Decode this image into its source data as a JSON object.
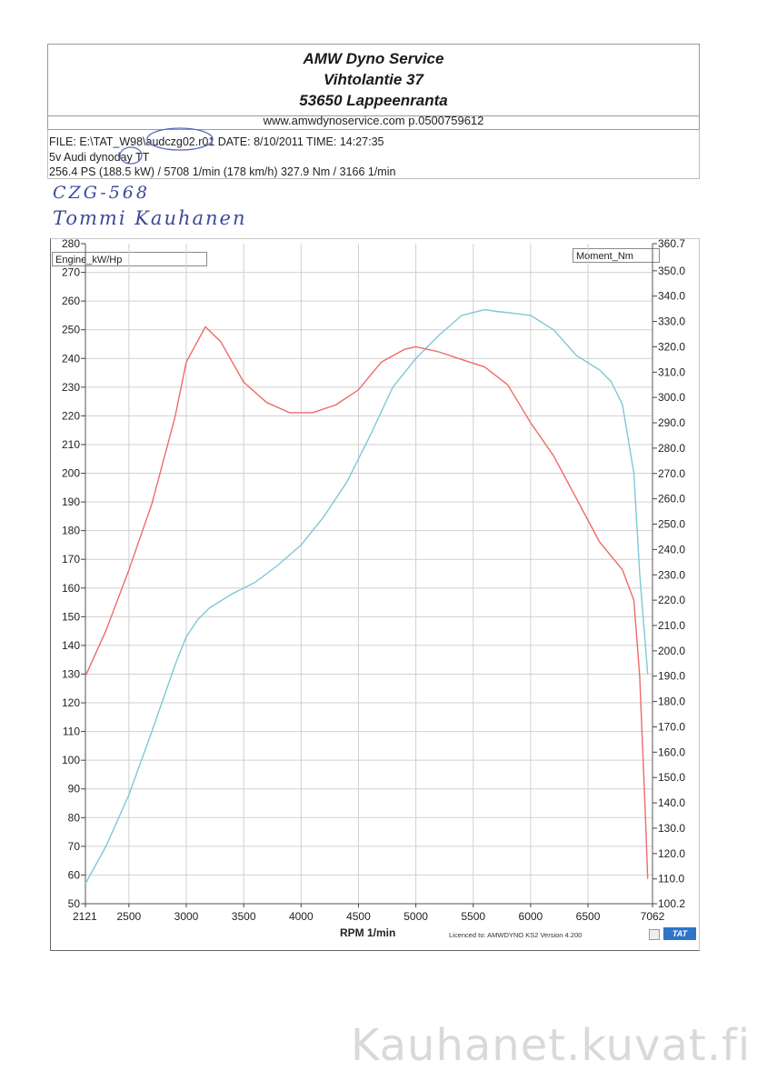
{
  "header": {
    "company": "AMW Dyno Service",
    "street": "Vihtolantie 37",
    "city": "53650 Lappeenranta",
    "web": "www.amwdynoservice.com p.0500759612"
  },
  "info": {
    "file_line": "FILE: E:\\TAT_W98\\audczg02.r01  DATE: 8/10/2011  TIME: 14:27:35",
    "car_line": "5v Audi dynoday  TT",
    "result_line": "256.4 PS  (188.5 kW) / 5708 1/min (178 km/h)    327.9 Nm / 3166 1/min"
  },
  "handwriting": {
    "plate": "CZG-568",
    "owner": "Tommi Kauhanen"
  },
  "colors": {
    "power": "#7ec8d8",
    "torque": "#f06a6a",
    "grid": "#d0d0d0",
    "tat": "#2f74c8"
  },
  "footer": {
    "licence": "Licenced to: AMWDYNO KS2    Version 4.200",
    "tat": "TAT"
  },
  "watermark": "Kauhanet.kuvat.fi",
  "chart_data": {
    "type": "line",
    "xlabel": "RPM  1/min",
    "x_range": [
      2121,
      7062
    ],
    "x_ticks": [
      "2121",
      "2500",
      "3000",
      "3500",
      "4000",
      "4500",
      "5000",
      "5500",
      "6000",
      "6500",
      "7062"
    ],
    "left_axis": {
      "label": "Engine_kW/Hp",
      "range": [
        50,
        280
      ],
      "ticks": [
        "280",
        "270",
        "260",
        "250",
        "240",
        "230",
        "220",
        "210",
        "200",
        "190",
        "180",
        "170",
        "160",
        "150",
        "140",
        "130",
        "120",
        "110",
        "100",
        "90",
        "80",
        "70",
        "60",
        "50"
      ]
    },
    "right_axis": {
      "label": "Moment_Nm",
      "range": [
        100.2,
        360.7
      ],
      "ticks": [
        "360.7",
        "350.0",
        "340.0",
        "330.0",
        "320.0",
        "310.0",
        "300.0",
        "290.0",
        "280.0",
        "270.0",
        "260.0",
        "250.0",
        "240.0",
        "230.0",
        "220.0",
        "210.0",
        "200.0",
        "190.0",
        "180.0",
        "170.0",
        "160.0",
        "150.0",
        "140.0",
        "130.0",
        "120.0",
        "110.0",
        "100.2"
      ]
    },
    "grid": true,
    "series": [
      {
        "name": "Engine_kW/Hp",
        "axis": "left",
        "x": [
          2121,
          2300,
          2500,
          2700,
          2900,
          3000,
          3100,
          3200,
          3400,
          3600,
          3800,
          4000,
          4200,
          4400,
          4600,
          4800,
          5000,
          5200,
          5400,
          5600,
          5700,
          5800,
          6000,
          6200,
          6400,
          6600,
          6700,
          6800,
          6900,
          6950,
          7000,
          7020
        ],
        "values": [
          57,
          70,
          88,
          110,
          133,
          143,
          149,
          153,
          158,
          162,
          168,
          175,
          185,
          197,
          213,
          230,
          240,
          248,
          255,
          257,
          256.4,
          256,
          255,
          250,
          241,
          236,
          232,
          224,
          200,
          165,
          140,
          130
        ]
      },
      {
        "name": "Moment_Nm",
        "axis": "right",
        "x": [
          2121,
          2300,
          2500,
          2700,
          2900,
          3000,
          3166,
          3300,
          3500,
          3700,
          3900,
          4100,
          4300,
          4500,
          4700,
          4900,
          5000,
          5200,
          5400,
          5600,
          5800,
          6000,
          6200,
          6400,
          6600,
          6800,
          6900,
          6950,
          7000,
          7020
        ],
        "values": [
          190,
          208,
          232,
          258,
          292,
          314,
          327.9,
          322,
          306,
          298,
          294,
          294,
          297,
          303,
          314,
          319,
          320,
          318,
          315,
          312,
          305,
          290,
          277,
          260,
          243,
          232,
          220,
          190,
          135,
          110
        ]
      }
    ]
  }
}
